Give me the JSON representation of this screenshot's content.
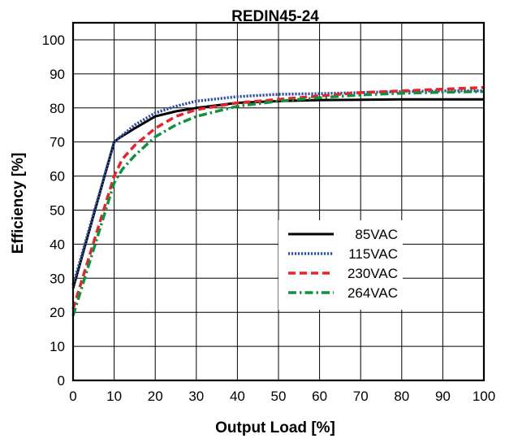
{
  "chart_data": {
    "type": "line",
    "title": "REDIN45-24",
    "xlabel": "Output Load [%]",
    "ylabel": "Efficiency [%]",
    "xlim": [
      0,
      100
    ],
    "ylim": [
      0,
      105
    ],
    "x_ticks": [
      0,
      10,
      20,
      30,
      40,
      50,
      60,
      70,
      80,
      90,
      100
    ],
    "y_ticks": [
      0,
      10,
      20,
      30,
      40,
      50,
      60,
      70,
      80,
      90,
      100
    ],
    "grid": true,
    "legend_position": "lower-right",
    "series": [
      {
        "name": "85VAC",
        "color": "#000000",
        "style": "solid",
        "x": [
          0,
          10,
          11,
          15,
          20,
          25,
          30,
          40,
          50,
          60,
          70,
          80,
          90,
          100
        ],
        "y": [
          27,
          70,
          71,
          74,
          77.5,
          79,
          80,
          81.5,
          82,
          82.3,
          82.4,
          82.5,
          82.5,
          82.5
        ]
      },
      {
        "name": "115VAC",
        "color": "#2e4da0",
        "style": "dotted",
        "x": [
          0,
          10,
          11,
          15,
          20,
          25,
          30,
          40,
          50,
          60,
          70,
          80,
          90,
          100
        ],
        "y": [
          28,
          70,
          71,
          75,
          78.5,
          80.5,
          82,
          83.3,
          84,
          84.2,
          84.5,
          84.8,
          85,
          85
        ]
      },
      {
        "name": "230VAC",
        "color": "#e8232a",
        "style": "dashed",
        "x": [
          0,
          10,
          12,
          15,
          20,
          25,
          30,
          40,
          50,
          60,
          70,
          80,
          90,
          100
        ],
        "y": [
          21,
          60,
          65,
          69,
          74,
          77.5,
          79.5,
          81.5,
          82.5,
          83.5,
          84.5,
          85,
          85.5,
          86
        ]
      },
      {
        "name": "264VAC",
        "color": "#119040",
        "style": "dashdot",
        "x": [
          0,
          10,
          12,
          15,
          20,
          25,
          30,
          40,
          50,
          60,
          70,
          80,
          90,
          100
        ],
        "y": [
          19,
          58,
          62,
          66,
          71.5,
          75,
          77.5,
          80.5,
          82,
          83,
          83.8,
          84.3,
          84.6,
          84.8
        ]
      }
    ]
  }
}
